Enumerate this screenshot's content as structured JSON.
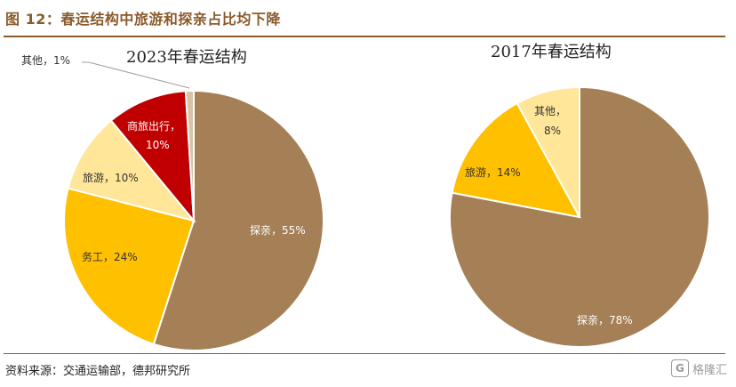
{
  "figure": {
    "title": "图 12：春运结构中旅游和探亲占比均下降",
    "source": "资料来源：交通运输部，德邦研究所",
    "watermark": "格隆汇",
    "watermark_logo": "G"
  },
  "chart_data": [
    {
      "type": "pie",
      "title": "2023年春运结构",
      "slices": [
        {
          "label": "探亲",
          "value": 55,
          "display": "探亲，55%",
          "color": "#A57F56"
        },
        {
          "label": "务工",
          "value": 24,
          "display": "务工，24%",
          "color": "#FFC000"
        },
        {
          "label": "旅游",
          "value": 10,
          "display": "旅游，10%",
          "color": "#FFE699"
        },
        {
          "label": "商旅出行",
          "value": 10,
          "display_line1": "商旅出行，",
          "display_line2": "10%",
          "color": "#C00000"
        },
        {
          "label": "其他",
          "value": 1,
          "display": "其他，1%",
          "color": "#D9C3A5"
        }
      ]
    },
    {
      "type": "pie",
      "title": "2017年春运结构",
      "slices": [
        {
          "label": "探亲",
          "value": 78,
          "display": "探亲，78%",
          "color": "#A57F56"
        },
        {
          "label": "旅游",
          "value": 14,
          "display": "旅游，14%",
          "color": "#FFC000"
        },
        {
          "label": "其他",
          "value": 8,
          "display_line1": "其他，",
          "display_line2": "8%",
          "color": "#FFE699"
        }
      ]
    }
  ]
}
